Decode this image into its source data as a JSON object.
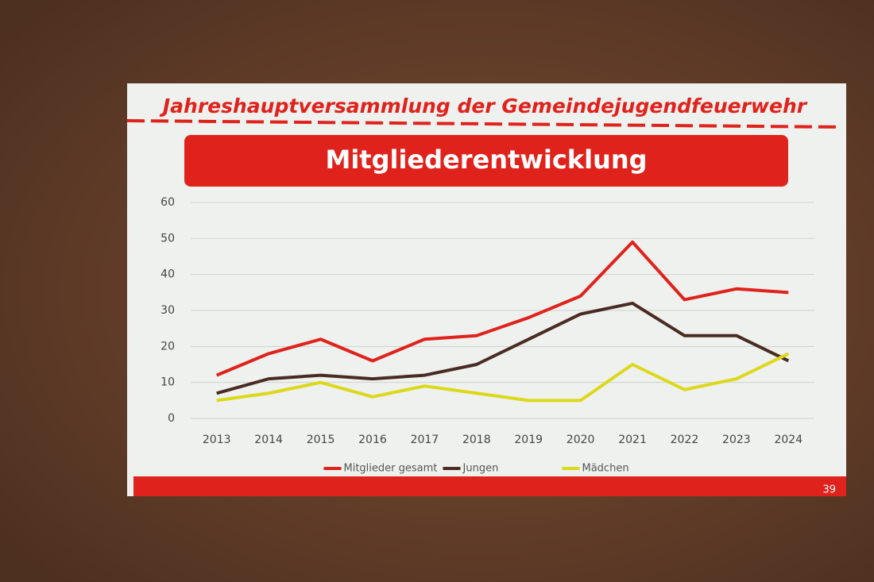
{
  "header": {
    "title": "Jahreshauptversammlung der Gemeindejugendfeuerwehr"
  },
  "slide_number": 39,
  "chart_data": {
    "type": "line",
    "title": "Mitgliederentwicklung",
    "categories": [
      "2013",
      "2014",
      "2015",
      "2016",
      "2017",
      "2018",
      "2019",
      "2020",
      "2021",
      "2022",
      "2023",
      "2024"
    ],
    "series": [
      {
        "name": "Mitglieder gesamt",
        "color": "#e0221c",
        "values": [
          12,
          18,
          22,
          16,
          22,
          23,
          28,
          34,
          49,
          33,
          36,
          35
        ]
      },
      {
        "name": "Jungen",
        "color": "#4a2b22",
        "values": [
          7,
          11,
          12,
          11,
          12,
          15,
          22,
          29,
          32,
          23,
          23,
          16
        ]
      },
      {
        "name": "Mädchen",
        "color": "#dcd81a",
        "values": [
          5,
          7,
          10,
          6,
          9,
          7,
          5,
          5,
          15,
          8,
          11,
          18
        ]
      }
    ],
    "ylim": [
      0,
      60
    ],
    "yticks": [
      0,
      10,
      20,
      30,
      40,
      50,
      60
    ],
    "grid": true,
    "legend": "bottom"
  }
}
